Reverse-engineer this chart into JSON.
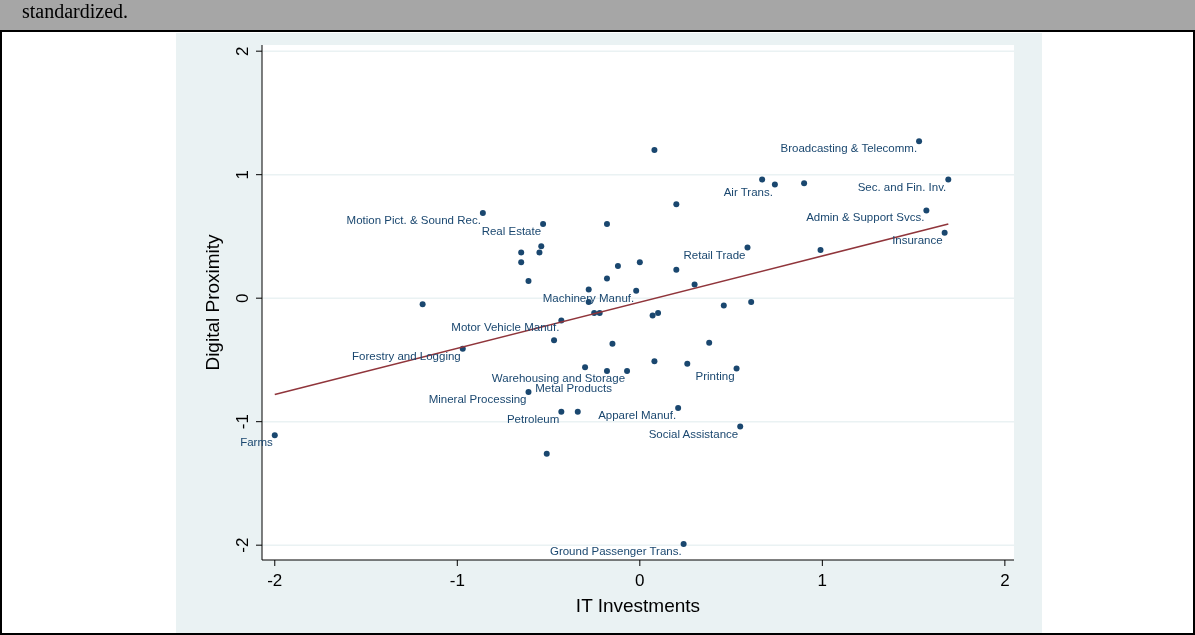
{
  "chart_data": {
    "type": "scatter",
    "xlabel": "IT Investments",
    "ylabel": "Digital Proximity",
    "xlim": [
      -2.07,
      2.05
    ],
    "xticks": [
      -2,
      -1,
      0,
      1,
      2
    ],
    "ylim": [
      -2.12,
      2.05
    ],
    "yticks": [
      -2,
      -1,
      0,
      1,
      2
    ],
    "grid": "y",
    "marker": "circle",
    "series": [
      {
        "color": "#1a476f",
        "x": [
          -2.0,
          -1.19,
          -0.97,
          -0.86,
          -0.53,
          -0.18,
          -0.65,
          -0.65,
          -0.54,
          -0.55,
          -0.61,
          -0.12,
          0.0,
          -0.18,
          -0.28,
          -0.02,
          -0.28,
          -0.25,
          -0.22,
          -0.43,
          -0.47,
          -0.15,
          -0.3,
          -0.18,
          -0.07,
          -0.61,
          -0.43,
          -0.34,
          -0.51,
          0.3,
          0.46,
          0.61,
          0.07,
          0.1,
          0.38,
          0.08,
          0.26,
          0.53,
          0.21,
          0.55,
          0.08,
          1.53,
          0.67,
          0.74,
          0.9,
          1.69,
          0.2,
          1.57,
          1.67,
          0.59,
          0.99,
          0.2,
          0.24
        ],
        "values": [
          -1.11,
          -0.05,
          -0.41,
          0.69,
          0.6,
          0.6,
          0.37,
          0.29,
          0.42,
          0.37,
          0.14,
          0.26,
          0.29,
          0.16,
          0.07,
          0.06,
          -0.03,
          -0.12,
          -0.12,
          -0.18,
          -0.34,
          -0.37,
          -0.56,
          -0.59,
          -0.59,
          -0.76,
          -0.92,
          -0.92,
          -1.26,
          0.11,
          -0.06,
          -0.03,
          -0.14,
          -0.12,
          -0.36,
          -0.51,
          -0.53,
          -0.57,
          -0.89,
          -1.04,
          1.2,
          1.27,
          0.96,
          0.92,
          0.93,
          0.96,
          0.76,
          0.71,
          0.53,
          0.41,
          0.39,
          0.23,
          -1.99
        ]
      },
      {
        "type": "line",
        "color": "#90353b",
        "marker": "none",
        "x": [
          -2.0,
          1.69
        ],
        "values": [
          -0.78,
          0.6
        ]
      }
    ],
    "annotations": [
      "standardized.",
      {
        "text": "Broadcasting & Telecomm.",
        "x": 1.53,
        "y": 1.27
      },
      {
        "text": "Air Trans.",
        "x": 0.74,
        "y": 0.92
      },
      {
        "text": "Sec. and Fin. Inv.",
        "x": 1.69,
        "y": 0.96
      },
      {
        "text": "Admin & Support Svcs.",
        "x": 1.57,
        "y": 0.71
      },
      {
        "text": "Insurance",
        "x": 1.67,
        "y": 0.53
      },
      {
        "text": "Retail Trade",
        "x": 0.59,
        "y": 0.41
      },
      {
        "text": "Motion Pict. & Sound Rec.",
        "x": -0.86,
        "y": 0.69
      },
      {
        "text": "Real Estate",
        "x": -0.53,
        "y": 0.6
      },
      {
        "text": "Machinery Manuf.",
        "x": -0.02,
        "y": 0.06
      },
      {
        "text": "Motor Vehicle Manuf.",
        "x": -0.43,
        "y": -0.18
      },
      {
        "text": "Forestry and Logging",
        "x": -0.97,
        "y": -0.41
      },
      {
        "text": "Warehousing and Storage",
        "x": -0.07,
        "y": -0.59
      },
      {
        "text": "Metal Products",
        "x": -0.18,
        "y": -0.59
      },
      {
        "text": "Mineral Processing",
        "x": -0.61,
        "y": -0.76
      },
      {
        "text": "Petroleum",
        "x": -0.43,
        "y": -0.92
      },
      {
        "text": "Apparel Manuf.",
        "x": 0.21,
        "y": -0.89
      },
      {
        "text": "Social Assistance",
        "x": 0.55,
        "y": -1.04
      },
      {
        "text": "Printing",
        "x": 0.53,
        "y": -0.57
      },
      {
        "text": "Farms",
        "x": -2.0,
        "y": -1.11
      },
      {
        "text": "Ground Passenger Trans.",
        "x": 0.24,
        "y": -1.99
      }
    ]
  }
}
